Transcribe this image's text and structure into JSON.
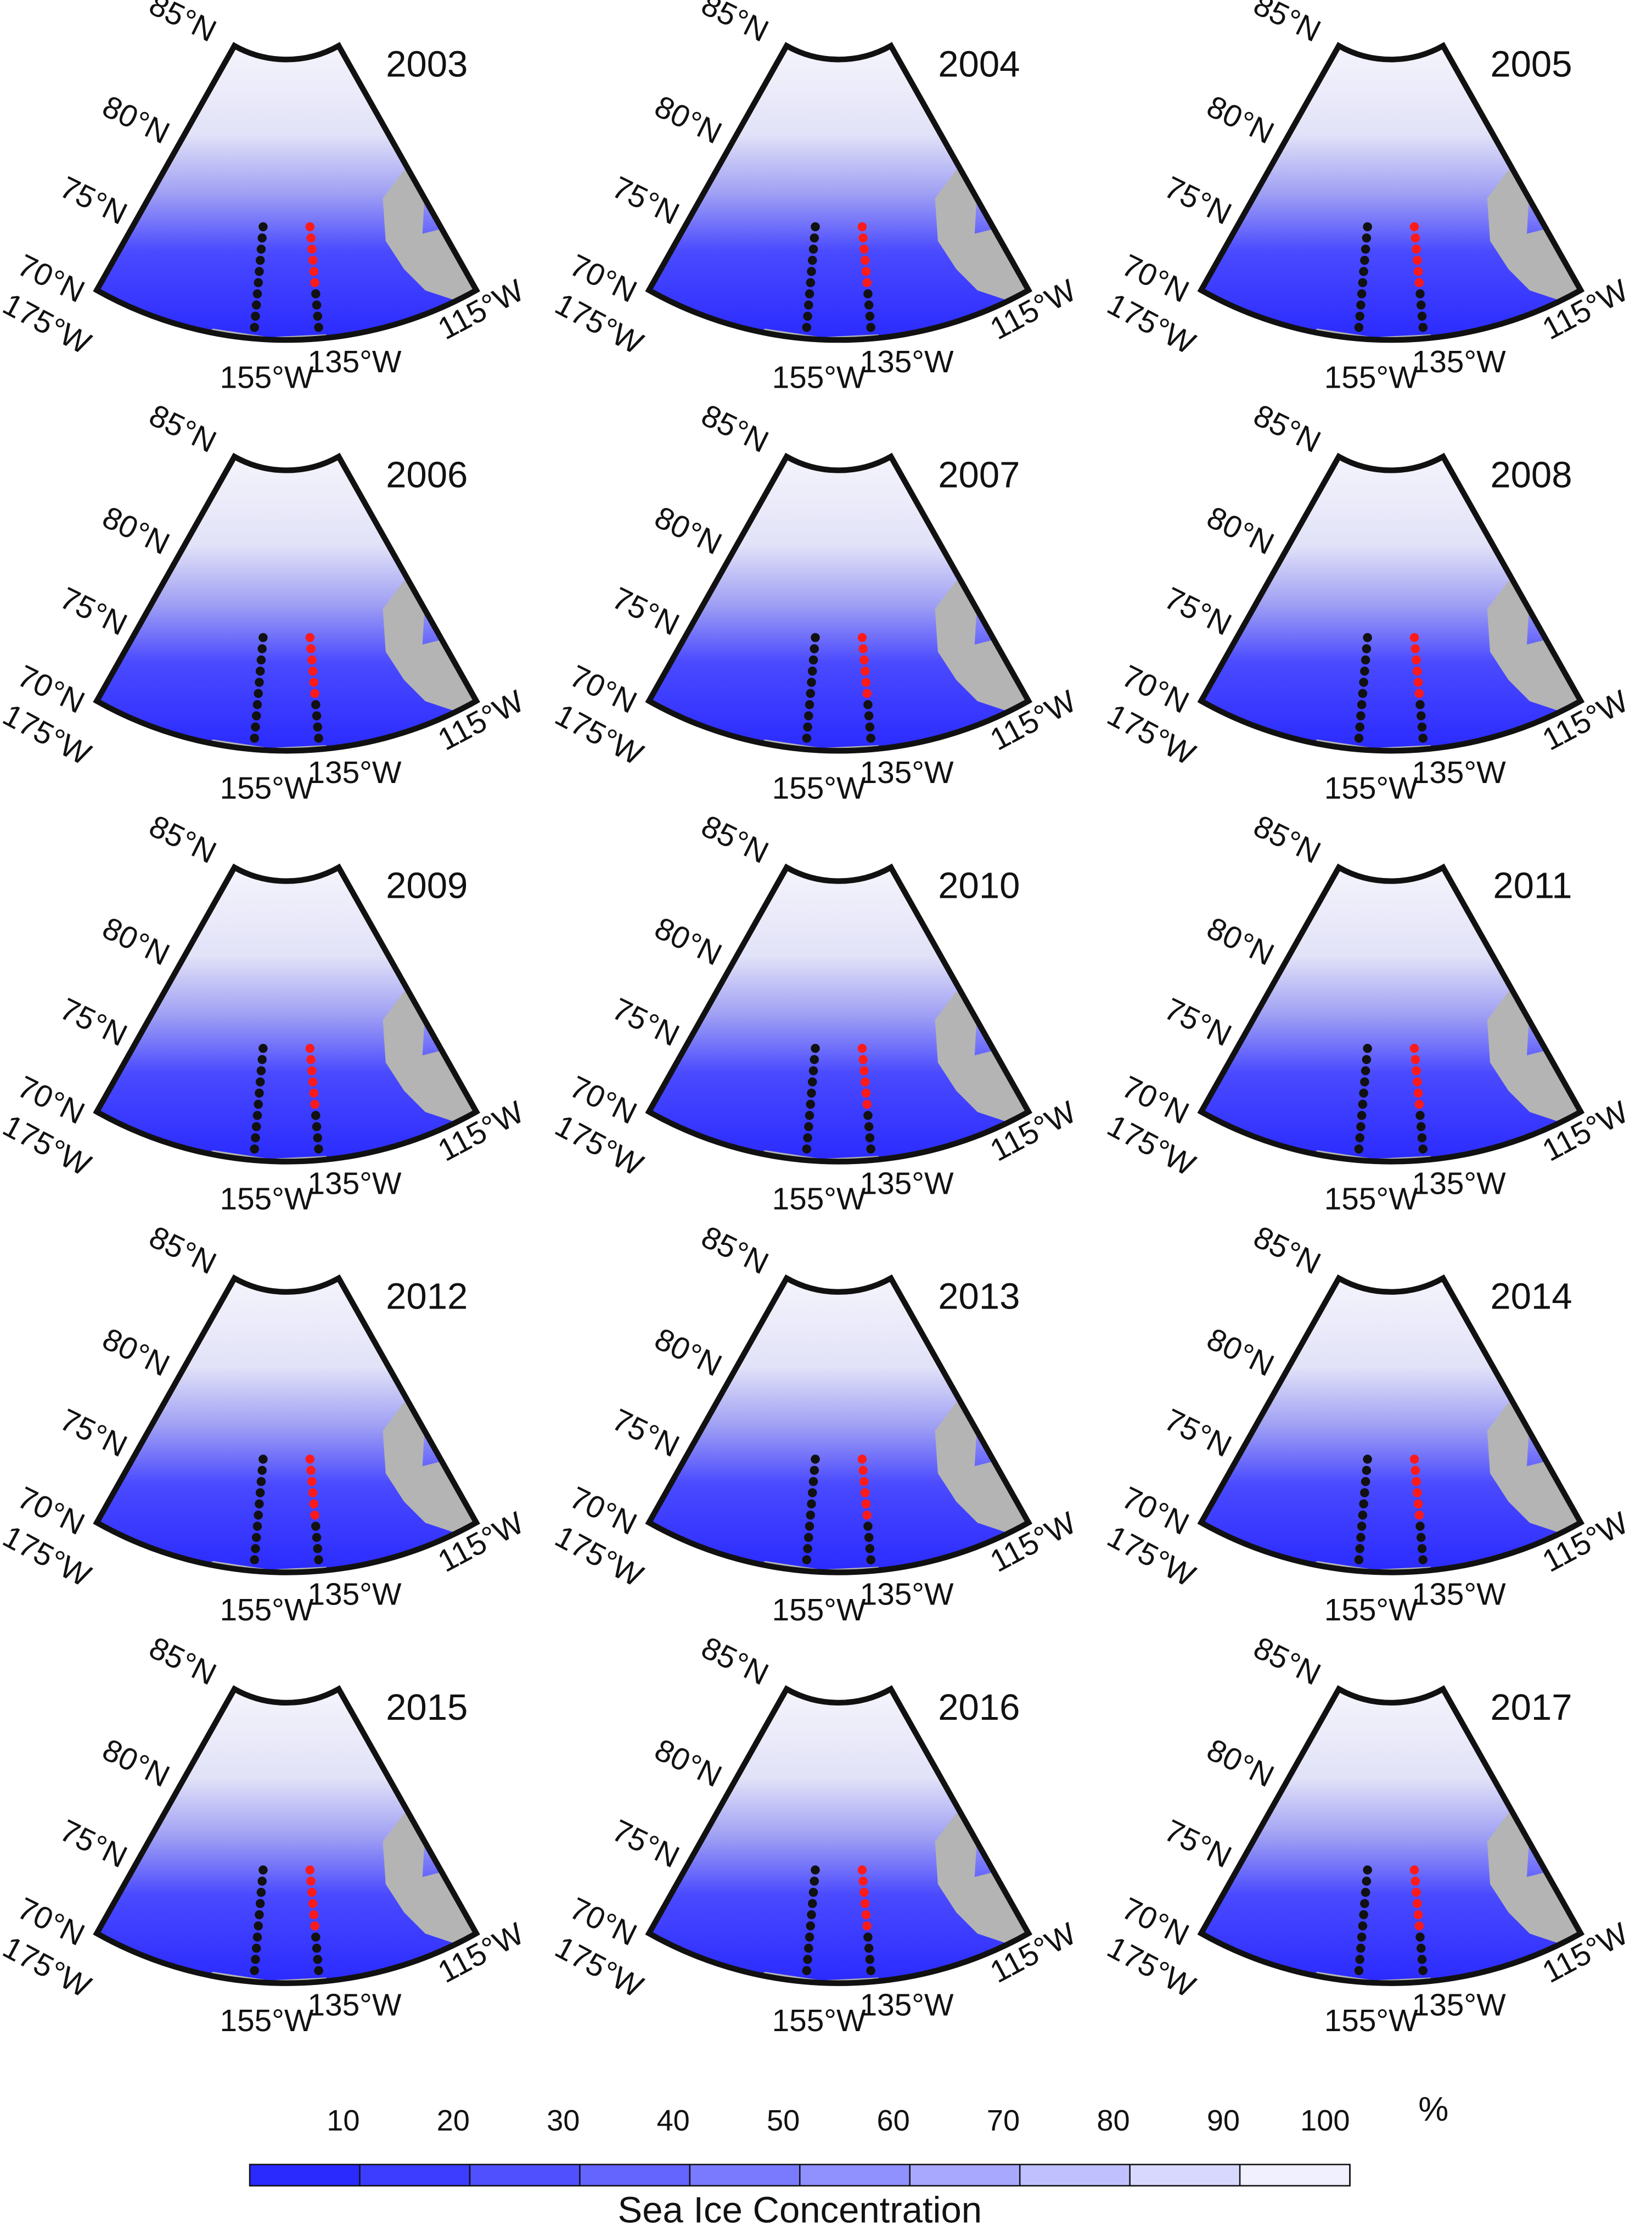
{
  "panels": [
    {
      "year": "2003"
    },
    {
      "year": "2004"
    },
    {
      "year": "2005"
    },
    {
      "year": "2006"
    },
    {
      "year": "2007"
    },
    {
      "year": "2008"
    },
    {
      "year": "2009"
    },
    {
      "year": "2010"
    },
    {
      "year": "2011"
    },
    {
      "year": "2012"
    },
    {
      "year": "2013"
    },
    {
      "year": "2014"
    },
    {
      "year": "2015"
    },
    {
      "year": "2016"
    },
    {
      "year": "2017"
    }
  ],
  "lat_labels": [
    "85°N",
    "80°N",
    "75°N",
    "70°N"
  ],
  "lon_labels": [
    "175°W",
    "155°W",
    "135°W",
    "115°W"
  ],
  "colorbar": {
    "label": "Sea Ice Concentration",
    "unit": "%",
    "lim": [
      0,
      100
    ],
    "ticks": [
      10,
      20,
      30,
      40,
      50,
      60,
      70,
      80,
      90,
      100
    ],
    "colors": [
      "#2a2aff",
      "#3d3dff",
      "#5050ff",
      "#6464ff",
      "#7a7aff",
      "#9090ff",
      "#a8a8ff",
      "#c0c0ff",
      "#d8d8ff",
      "#f0f0ff"
    ]
  }
}
